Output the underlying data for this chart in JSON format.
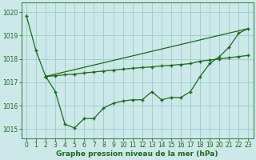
{
  "xlabel": "Graphe pression niveau de la mer (hPa)",
  "bg_color": "#cce8e8",
  "grid_color": "#99cccc",
  "line_color": "#1a6b1a",
  "xlim": [
    -0.5,
    23.5
  ],
  "ylim": [
    1014.6,
    1020.4
  ],
  "yticks": [
    1015,
    1016,
    1017,
    1018,
    1019,
    1020
  ],
  "xticks": [
    0,
    1,
    2,
    3,
    4,
    5,
    6,
    7,
    8,
    9,
    10,
    11,
    12,
    13,
    14,
    15,
    16,
    17,
    18,
    19,
    20,
    21,
    22,
    23
  ],
  "series1_x": [
    0,
    1,
    2
  ],
  "series1_y": [
    1019.85,
    1018.35,
    1017.25
  ],
  "series2_x": [
    2,
    3,
    4,
    5,
    6,
    7,
    8,
    9,
    10,
    11,
    12,
    13,
    14,
    15,
    16,
    17,
    18,
    19,
    20,
    21,
    22,
    23
  ],
  "series2_y": [
    1017.25,
    1016.6,
    1015.2,
    1015.05,
    1015.45,
    1015.45,
    1015.9,
    1016.1,
    1016.2,
    1016.25,
    1016.25,
    1016.6,
    1016.25,
    1016.35,
    1016.35,
    1016.6,
    1017.25,
    1017.8,
    1018.1,
    1018.5,
    1019.1,
    1019.3
  ],
  "series3_x": [
    2,
    3,
    4,
    5,
    6,
    7,
    8,
    9,
    10,
    11,
    12,
    13,
    14,
    15,
    16,
    17,
    18,
    19,
    20,
    21,
    22,
    23
  ],
  "series3_y": [
    1017.25,
    1017.28,
    1017.32,
    1017.35,
    1017.4,
    1017.44,
    1017.48,
    1017.52,
    1017.56,
    1017.6,
    1017.63,
    1017.66,
    1017.7,
    1017.73,
    1017.76,
    1017.8,
    1017.9,
    1017.95,
    1018.0,
    1018.05,
    1018.1,
    1018.15
  ],
  "series4_x": [
    2,
    23
  ],
  "series4_y": [
    1017.25,
    1019.3
  ],
  "marker_size": 3,
  "line_width": 0.9,
  "tick_fontsize": 5.5,
  "xlabel_fontsize": 6.5
}
